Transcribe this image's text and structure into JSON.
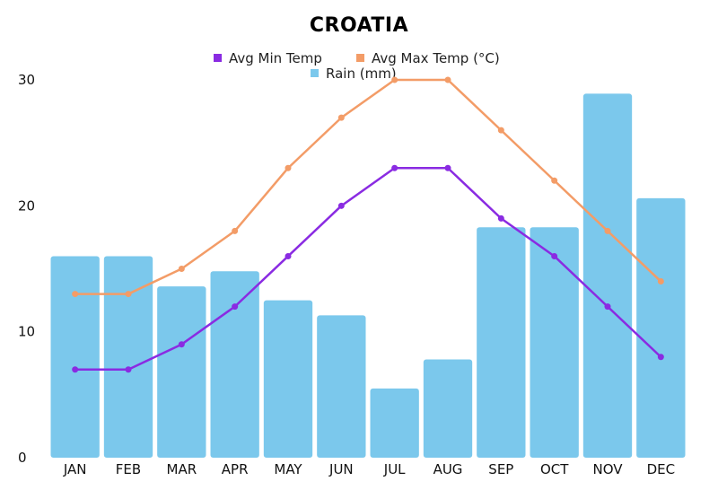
{
  "chart_data": {
    "type": "bar",
    "title": "CROATIA",
    "categories": [
      "JAN",
      "FEB",
      "MAR",
      "APR",
      "MAY",
      "JUN",
      "JUL",
      "AUG",
      "SEP",
      "OCT",
      "NOV",
      "DEC"
    ],
    "ylim": [
      0,
      30
    ],
    "yticks": [
      0,
      10,
      20,
      30
    ],
    "grid": false,
    "legend_position": "top-center",
    "series": [
      {
        "name": "Rain (mm)",
        "type": "bar",
        "color": "#7bc8ec",
        "values": [
          16,
          16,
          13.6,
          14.8,
          12.5,
          11.3,
          5.5,
          7.8,
          18.3,
          18.3,
          28.9,
          20.6
        ]
      },
      {
        "name": "Avg Min Temp",
        "type": "line",
        "color": "#8a2be2",
        "values": [
          7,
          7,
          9,
          12,
          16,
          20,
          23,
          23,
          19,
          16,
          12,
          8
        ]
      },
      {
        "name": "Avg Max Temp (°C)",
        "type": "line",
        "color": "#f39c67",
        "values": [
          13,
          13,
          15,
          18,
          23,
          27,
          30,
          30,
          26,
          22,
          18,
          14
        ]
      }
    ]
  }
}
